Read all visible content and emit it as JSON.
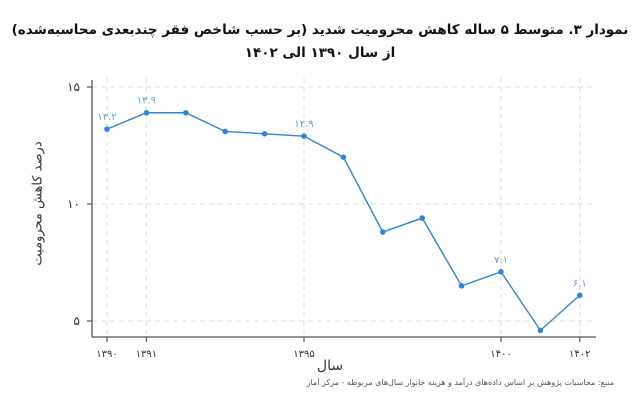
{
  "title": {
    "line1": "نمودار ۳. متوسط ۵ ساله کاهش محرومیت شدید (بر حسب شاخص فقر چندبعدی محاسبه‌شده)",
    "line2": "از سال ۱۳۹۰ الی ۱۴۰۲"
  },
  "axes": {
    "ylabel": "درصد کاهش محرومیت",
    "xlabel": "سال"
  },
  "source": "منبع: محاسبات پژوهش بر اساس داده‌های درآمد و هزینه خانوار سال‌های مربوطه - مرکز آمار",
  "colors": {
    "line": "#2e86de",
    "axis": "#555555",
    "grid": "#dddddd"
  },
  "chart_data": {
    "type": "line",
    "title": "نمودار ۳. متوسط ۵ ساله کاهش محرومیت شدید (بر حسب شاخص فقر چندبعدی محاسبه‌شده) از سال ۱۳۹۰ الی ۱۴۰۲",
    "xlabel": "سال",
    "ylabel": "درصد کاهش محرومیت",
    "x": [
      1390,
      1391,
      1392,
      1393,
      1394,
      1395,
      1396,
      1397,
      1398,
      1399,
      1400,
      1401,
      1402
    ],
    "series": [
      {
        "name": "کاهش محرومیت",
        "values": [
          13.2,
          13.9,
          13.9,
          13.1,
          13.0,
          12.9,
          12.0,
          8.8,
          9.4,
          6.5,
          7.1,
          4.6,
          6.1
        ]
      }
    ],
    "data_labels": [
      {
        "x": 1390,
        "label": "۱۳.۲"
      },
      {
        "x": 1391,
        "label": "۱۳.۹"
      },
      {
        "x": 1395,
        "label": "۱۲.۹"
      },
      {
        "x": 1400,
        "label": "۷.۱"
      },
      {
        "x": 1402,
        "label": "۶.۱"
      }
    ],
    "xticks": [
      {
        "v": 1390,
        "label": "۱۳۹۰"
      },
      {
        "v": 1391,
        "label": "۱۳۹۱"
      },
      {
        "v": 1395,
        "label": "۱۳۹۵"
      },
      {
        "v": 1400,
        "label": "۱۴۰۰"
      },
      {
        "v": 1402,
        "label": "۱۴۰۲"
      }
    ],
    "yticks": [
      {
        "v": 5,
        "label": "۵"
      },
      {
        "v": 10,
        "label": "۱۰"
      },
      {
        "v": 15,
        "label": "۱۵"
      }
    ],
    "ylim": [
      4.3,
      15.2
    ],
    "grid": true,
    "legend": "none"
  }
}
